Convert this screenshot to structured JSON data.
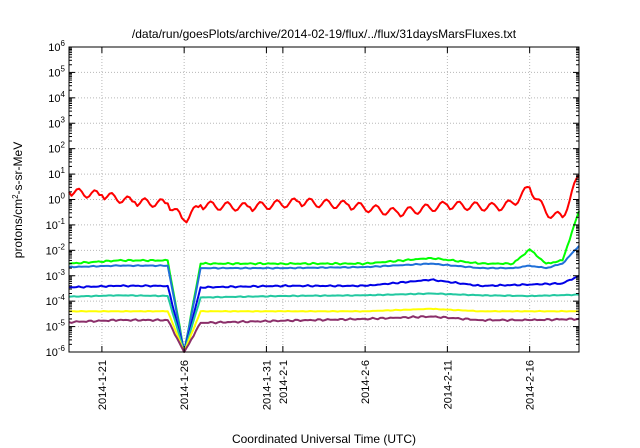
{
  "chart_data": {
    "type": "line",
    "title": "/data/run/goesPlots/archive/2014-02-19/flux/../flux/31daysMarsFluxes.txt",
    "xlabel": "Coordinated Universal Time (UTC)",
    "ylabel": "protons/cm²-s-sr-MeV",
    "y_scale": "log",
    "ylim": [
      1e-06,
      1000000.0
    ],
    "xlim": [
      "2014-01-19",
      "2014-02-19"
    ],
    "grid": true,
    "legend": "none",
    "y_ticks": [
      {
        "base": "10",
        "exp": "-6"
      },
      {
        "base": "10",
        "exp": "-5"
      },
      {
        "base": "10",
        "exp": "-4"
      },
      {
        "base": "10",
        "exp": "-3"
      },
      {
        "base": "10",
        "exp": "-2"
      },
      {
        "base": "10",
        "exp": "-1"
      },
      {
        "base": "10",
        "exp": "0"
      },
      {
        "base": "10",
        "exp": "1"
      },
      {
        "base": "10",
        "exp": "2"
      },
      {
        "base": "10",
        "exp": "3"
      },
      {
        "base": "10",
        "exp": "4"
      },
      {
        "base": "10",
        "exp": "5"
      },
      {
        "base": "10",
        "exp": "6"
      }
    ],
    "x_ticks": [
      {
        "label": "2014-1-21",
        "date": "2014-01-21"
      },
      {
        "label": "2014-1-26",
        "date": "2014-01-26"
      },
      {
        "label": "2014-1-31",
        "date": "2014-01-31"
      },
      {
        "label": "2014-2-1",
        "date": "2014-02-01"
      },
      {
        "label": "2014-2-6",
        "date": "2014-02-06"
      },
      {
        "label": "2014-2-11",
        "date": "2014-02-11"
      },
      {
        "label": "2014-2-16",
        "date": "2014-02-16"
      }
    ],
    "series": [
      {
        "color": "#ff0000",
        "x": [
          "2014-01-19",
          "2014-01-21",
          "2014-01-23",
          "2014-01-25",
          "2014-01-26",
          "2014-01-27",
          "2014-01-30",
          "2014-02-02",
          "2014-02-05",
          "2014-02-08",
          "2014-02-11",
          "2014-02-14",
          "2014-02-15",
          "2014-02-16",
          "2014-02-17",
          "2014-02-18",
          "2014-02-19"
        ],
        "y": [
          2.0,
          1.5,
          0.8,
          0.7,
          0.15,
          0.6,
          0.5,
          0.8,
          0.6,
          0.3,
          0.6,
          0.5,
          0.7,
          3.0,
          0.3,
          0.2,
          9.0
        ]
      },
      {
        "color": "#00ff00",
        "x": [
          "2014-01-19",
          "2014-01-22",
          "2014-01-25",
          "2014-01-26",
          "2014-01-27",
          "2014-02-01",
          "2014-02-06",
          "2014-02-10",
          "2014-02-13",
          "2014-02-15",
          "2014-02-16",
          "2014-02-17",
          "2014-02-18",
          "2014-02-19"
        ],
        "y": [
          0.003,
          0.004,
          0.004,
          1e-06,
          0.003,
          0.003,
          0.003,
          0.005,
          0.003,
          0.003,
          0.011,
          0.003,
          0.004,
          0.35
        ]
      },
      {
        "color": "#1f6fd8",
        "x": [
          "2014-01-19",
          "2014-01-22",
          "2014-01-25",
          "2014-01-26",
          "2014-01-27",
          "2014-02-01",
          "2014-02-06",
          "2014-02-10",
          "2014-02-13",
          "2014-02-15",
          "2014-02-16",
          "2014-02-17",
          "2014-02-18",
          "2014-02-19"
        ],
        "y": [
          0.0022,
          0.0025,
          0.0025,
          1e-06,
          0.002,
          0.002,
          0.0022,
          0.003,
          0.002,
          0.002,
          0.0025,
          0.002,
          0.003,
          0.015
        ]
      },
      {
        "color": "#0000e6",
        "x": [
          "2014-01-19",
          "2014-01-22",
          "2014-01-25",
          "2014-01-26",
          "2014-01-27",
          "2014-02-01",
          "2014-02-06",
          "2014-02-10",
          "2014-02-13",
          "2014-02-16",
          "2014-02-18",
          "2014-02-19"
        ],
        "y": [
          0.00035,
          0.0004,
          0.0004,
          1e-06,
          0.00035,
          0.0004,
          0.0004,
          0.0007,
          0.0004,
          0.00045,
          0.0005,
          0.001
        ]
      },
      {
        "color": "#22c8a0",
        "x": [
          "2014-01-19",
          "2014-01-22",
          "2014-01-25",
          "2014-01-26",
          "2014-01-27",
          "2014-02-01",
          "2014-02-06",
          "2014-02-10",
          "2014-02-13",
          "2014-02-16",
          "2014-02-19"
        ],
        "y": [
          0.00015,
          0.00017,
          0.00016,
          1e-06,
          0.00014,
          0.00016,
          0.00017,
          0.0002,
          0.00017,
          0.00016,
          0.00018
        ]
      },
      {
        "color": "#ffff00",
        "x": [
          "2014-01-19",
          "2014-01-22",
          "2014-01-25",
          "2014-01-26",
          "2014-01-27",
          "2014-02-01",
          "2014-02-06",
          "2014-02-10",
          "2014-02-13",
          "2014-02-16",
          "2014-02-19"
        ],
        "y": [
          4e-05,
          4e-05,
          4e-05,
          1e-06,
          4e-05,
          4e-05,
          4e-05,
          5e-05,
          4e-05,
          4e-05,
          4e-05
        ]
      },
      {
        "color": "#8b2f6a",
        "x": [
          "2014-01-19",
          "2014-01-22",
          "2014-01-25",
          "2014-01-26",
          "2014-01-27",
          "2014-02-01",
          "2014-02-06",
          "2014-02-10",
          "2014-02-13",
          "2014-02-16",
          "2014-02-19"
        ],
        "y": [
          1.5e-05,
          1.8e-05,
          1.8e-05,
          1e-06,
          1.4e-05,
          1.7e-05,
          2e-05,
          2.5e-05,
          1.8e-05,
          1.8e-05,
          2e-05
        ]
      }
    ]
  }
}
